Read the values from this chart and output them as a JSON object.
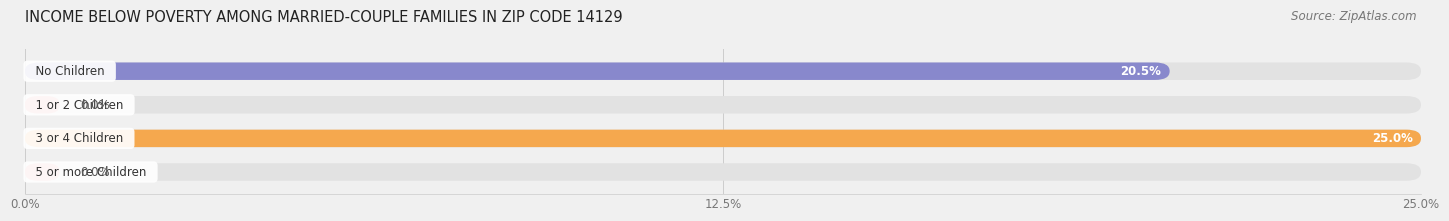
{
  "title": "INCOME BELOW POVERTY AMONG MARRIED-COUPLE FAMILIES IN ZIP CODE 14129",
  "source": "Source: ZipAtlas.com",
  "categories": [
    "No Children",
    "1 or 2 Children",
    "3 or 4 Children",
    "5 or more Children"
  ],
  "values": [
    20.5,
    0.0,
    25.0,
    0.0
  ],
  "bar_colors": [
    "#8888cc",
    "#f09090",
    "#f5a84e",
    "#f09090"
  ],
  "xlim_max": 25.0,
  "xticks": [
    0,
    12.5,
    25.0
  ],
  "xticklabels": [
    "0.0%",
    "12.5%",
    "25.0%"
  ],
  "value_labels": [
    "20.5%",
    "0.0%",
    "25.0%",
    "0.0%"
  ],
  "title_fontsize": 10.5,
  "source_fontsize": 8.5,
  "label_fontsize": 8.5,
  "value_fontsize": 8.5,
  "background_color": "#f0f0f0",
  "bar_bg_color": "#e2e2e2"
}
